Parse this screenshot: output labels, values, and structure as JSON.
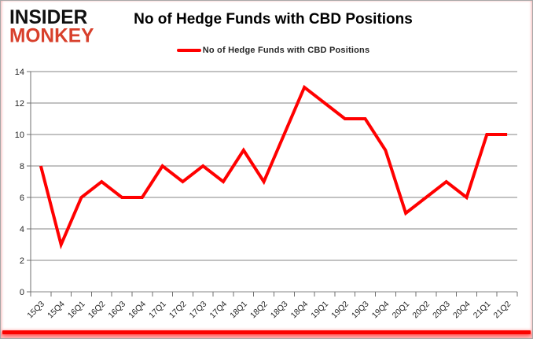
{
  "brand": {
    "line1": "INSIDER",
    "line2": "MONKEY",
    "line2_color": "#d8402c"
  },
  "header": {
    "title": "No of Hedge Funds with CBD Positions"
  },
  "legend": {
    "label": "No of Hedge Funds with CBD Positions",
    "line_color": "#ff0000"
  },
  "chart_data": {
    "type": "line",
    "title": "No of Hedge Funds with CBD Positions",
    "categories": [
      "15Q3",
      "15Q4",
      "16Q1",
      "16Q2",
      "16Q3",
      "16Q4",
      "17Q1",
      "17Q2",
      "17Q3",
      "17Q4",
      "18Q1",
      "18Q2",
      "18Q3",
      "18Q4",
      "19Q1",
      "19Q2",
      "19Q3",
      "19Q4",
      "20Q1",
      "20Q2",
      "20Q3",
      "20Q4",
      "21Q1",
      "21Q2"
    ],
    "series": [
      {
        "name": "No of Hedge Funds with CBD Positions",
        "color": "#ff0000",
        "values": [
          8,
          3,
          6,
          7,
          6,
          6,
          8,
          7,
          8,
          7,
          9,
          7,
          10,
          13,
          12,
          11,
          11,
          9,
          5,
          6,
          7,
          6,
          10,
          10
        ]
      }
    ],
    "xlabel": "",
    "ylabel": "",
    "ylim": [
      0,
      14
    ],
    "ytick_step": 2,
    "grid": true,
    "grid_color": "#848484",
    "axis_color": "#6f6f6f",
    "legend_position": "top"
  }
}
